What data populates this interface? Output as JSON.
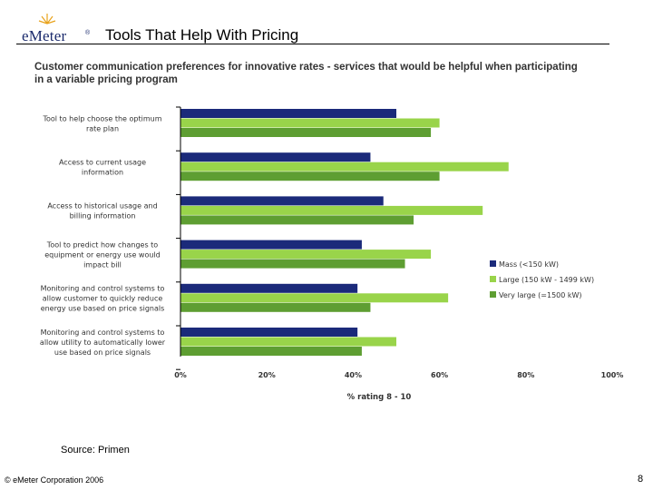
{
  "header": {
    "logo_text": "eMeter",
    "logo_tm": "®",
    "title": "Tools That Help With Pricing"
  },
  "chart_data": {
    "type": "bar",
    "orientation": "horizontal",
    "title": "Customer communication preferences for innovative rates - services that would be helpful when participating in a variable pricing program",
    "xlabel": "% rating 8 - 10",
    "ylabel": "",
    "xlim": [
      0,
      100
    ],
    "x_ticks": [
      "0%",
      "20%",
      "40%",
      "60%",
      "80%",
      "100%"
    ],
    "grid": false,
    "legend_position": "right",
    "categories": [
      [
        "Tool to help choose the optimum",
        "rate plan"
      ],
      [
        "Access to current usage",
        "information"
      ],
      [
        "Access to historical usage and",
        "billing information"
      ],
      [
        "Tool to predict how changes to",
        "equipment or energy use would",
        "impact bill"
      ],
      [
        "Monitoring and control systems to",
        "allow customer to quickly reduce",
        "energy use based on price signals"
      ],
      [
        "Monitoring and control systems to",
        "allow utility to automatically lower",
        "use based on price signals"
      ]
    ],
    "series": [
      {
        "name": "Mass (<150 kW)",
        "color": "#1b2a7a",
        "values": [
          50,
          44,
          47,
          42,
          41,
          41
        ]
      },
      {
        "name": "Large (150 kW - 1499 kW)",
        "color": "#99d44a",
        "values": [
          60,
          76,
          70,
          58,
          62,
          50
        ]
      },
      {
        "name": "Very large (=1500 kW)",
        "color": "#5e9e32",
        "values": [
          58,
          60,
          54,
          52,
          44,
          42
        ]
      }
    ]
  },
  "footer": {
    "source": "Source: Primen",
    "copyright": "© eMeter Corporation 2006",
    "page_number": "8"
  }
}
